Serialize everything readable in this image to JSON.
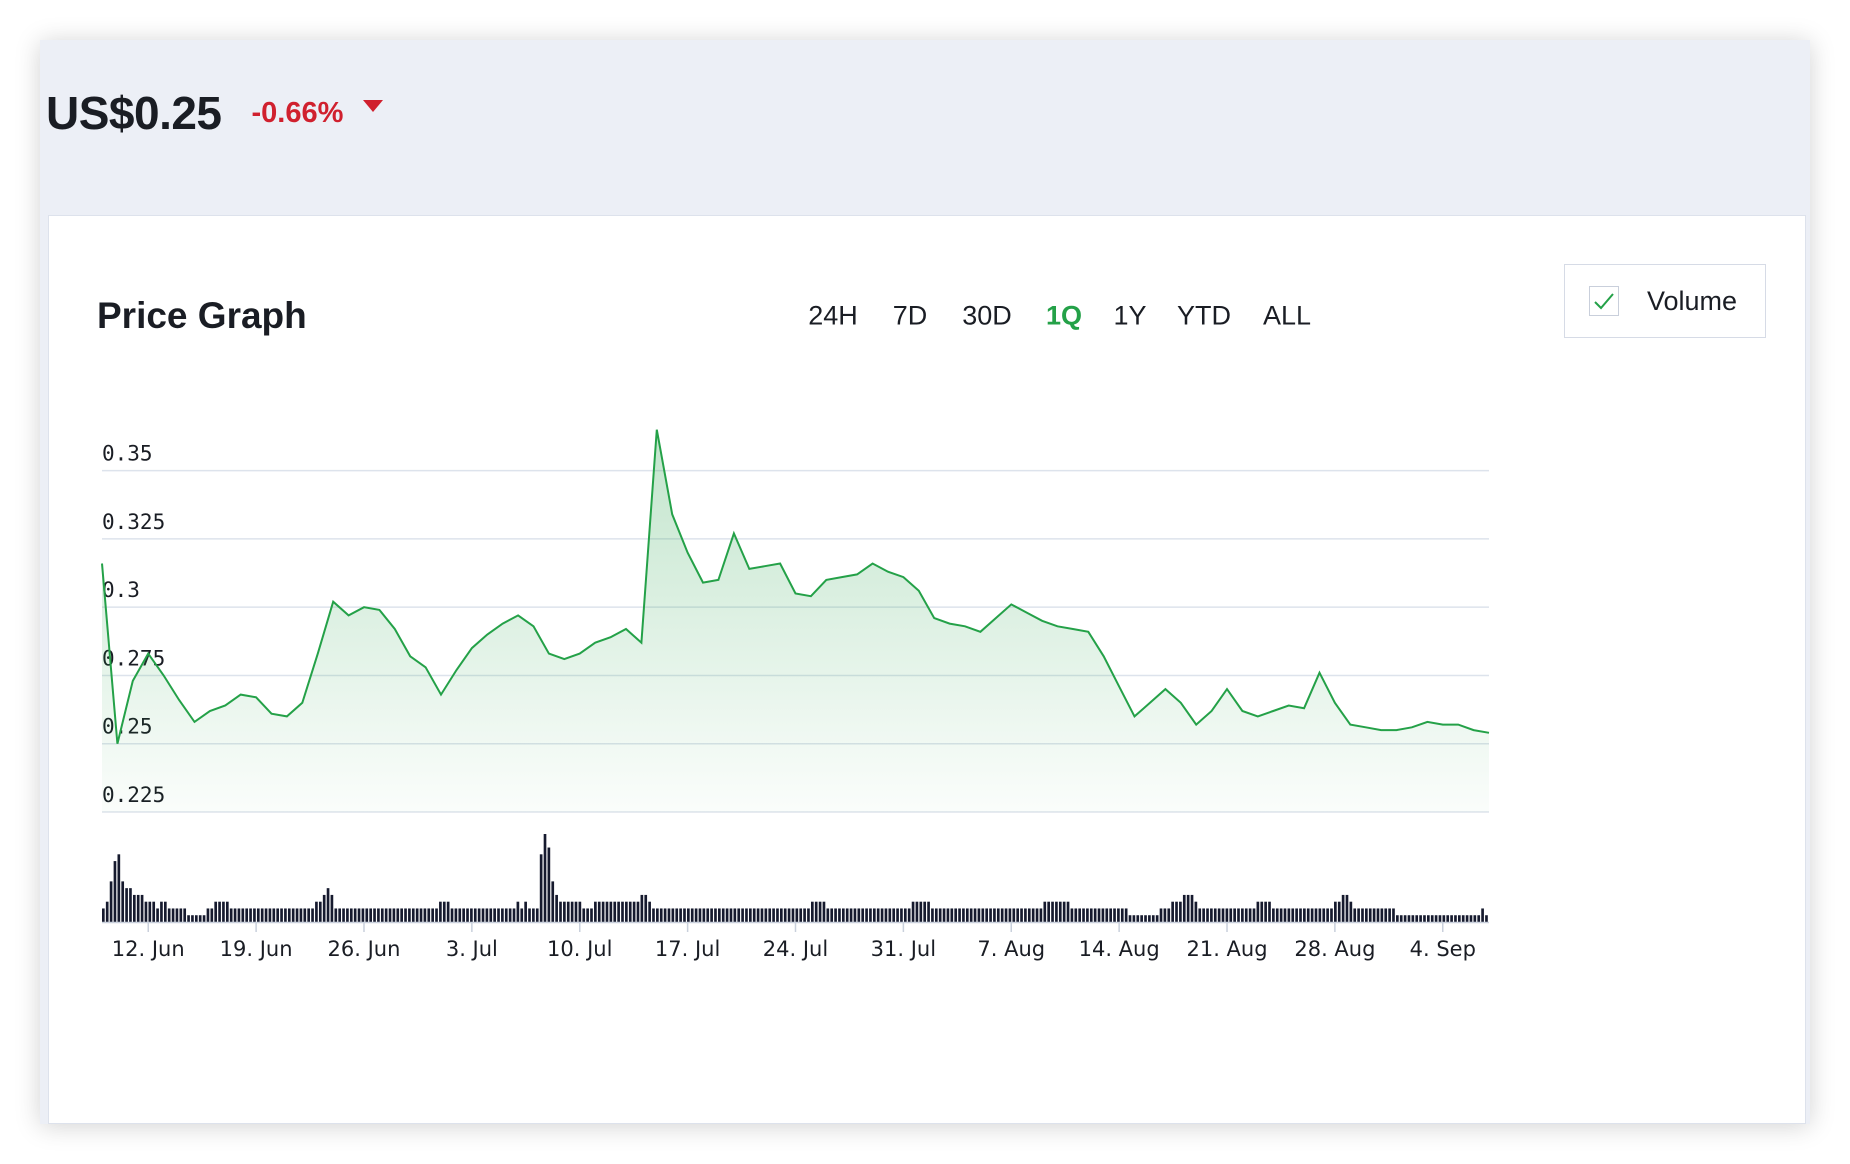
{
  "header": {
    "price": "US$0.25",
    "change": "-0.66%",
    "change_direction": "down",
    "change_color": "#d0202e"
  },
  "card": {
    "title": "Price Graph",
    "ranges": [
      {
        "label": "24H",
        "active": false
      },
      {
        "label": "7D",
        "active": false
      },
      {
        "label": "30D",
        "active": false
      },
      {
        "label": "1Q",
        "active": true
      },
      {
        "label": "1Y",
        "active": false
      },
      {
        "label": "YTD",
        "active": false
      },
      {
        "label": "ALL",
        "active": false
      }
    ],
    "volume_toggle": {
      "label": "Volume",
      "checked": true,
      "check_icon": "checkmark-icon"
    }
  },
  "colors": {
    "line": "#24a148",
    "area_fill": "#24a148",
    "volume_bar": "#161a2e",
    "gridline": "#dde3ec",
    "active_range": "#24a148"
  },
  "chart_data": {
    "type": "area",
    "title": "",
    "xlabel": "",
    "ylabel": "",
    "ylim": [
      0.225,
      0.37
    ],
    "yticks": [
      0.225,
      0.25,
      0.275,
      0.3,
      0.325,
      0.35
    ],
    "ytick_labels": [
      "0.225",
      "0.25",
      "0.275",
      "0.3",
      "0.325",
      "0.35"
    ],
    "grid": true,
    "x_range": [
      "2023-06-09",
      "2023-09-07"
    ],
    "xticks": [
      {
        "date": "2023-06-12",
        "label": "12. Jun"
      },
      {
        "date": "2023-06-19",
        "label": "19. Jun"
      },
      {
        "date": "2023-06-26",
        "label": "26. Jun"
      },
      {
        "date": "2023-07-03",
        "label": "3. Jul"
      },
      {
        "date": "2023-07-10",
        "label": "10. Jul"
      },
      {
        "date": "2023-07-17",
        "label": "17. Jul"
      },
      {
        "date": "2023-07-24",
        "label": "24. Jul"
      },
      {
        "date": "2023-07-31",
        "label": "31. Jul"
      },
      {
        "date": "2023-08-07",
        "label": "7. Aug"
      },
      {
        "date": "2023-08-14",
        "label": "14. Aug"
      },
      {
        "date": "2023-08-21",
        "label": "21. Aug"
      },
      {
        "date": "2023-08-28",
        "label": "28. Aug"
      },
      {
        "date": "2023-09-04",
        "label": "4. Sep"
      }
    ],
    "series": [
      {
        "values": [
          [
            "2023-06-09",
            0.316
          ],
          [
            "2023-06-10",
            0.25
          ],
          [
            "2023-06-11",
            0.273
          ],
          [
            "2023-06-12",
            0.283
          ],
          [
            "2023-06-13",
            0.275
          ],
          [
            "2023-06-14",
            0.266
          ],
          [
            "2023-06-15",
            0.258
          ],
          [
            "2023-06-16",
            0.262
          ],
          [
            "2023-06-17",
            0.264
          ],
          [
            "2023-06-18",
            0.268
          ],
          [
            "2023-06-19",
            0.267
          ],
          [
            "2023-06-20",
            0.261
          ],
          [
            "2023-06-21",
            0.26
          ],
          [
            "2023-06-22",
            0.265
          ],
          [
            "2023-06-23",
            0.283
          ],
          [
            "2023-06-24",
            0.302
          ],
          [
            "2023-06-25",
            0.297
          ],
          [
            "2023-06-26",
            0.3
          ],
          [
            "2023-06-27",
            0.299
          ],
          [
            "2023-06-28",
            0.292
          ],
          [
            "2023-06-29",
            0.282
          ],
          [
            "2023-06-30",
            0.278
          ],
          [
            "2023-07-01",
            0.268
          ],
          [
            "2023-07-02",
            0.277
          ],
          [
            "2023-07-03",
            0.285
          ],
          [
            "2023-07-04",
            0.29
          ],
          [
            "2023-07-05",
            0.294
          ],
          [
            "2023-07-06",
            0.297
          ],
          [
            "2023-07-07",
            0.293
          ],
          [
            "2023-07-08",
            0.283
          ],
          [
            "2023-07-09",
            0.281
          ],
          [
            "2023-07-10",
            0.283
          ],
          [
            "2023-07-11",
            0.287
          ],
          [
            "2023-07-12",
            0.289
          ],
          [
            "2023-07-13",
            0.292
          ],
          [
            "2023-07-14",
            0.287
          ],
          [
            "2023-07-15",
            0.365
          ],
          [
            "2023-07-16",
            0.334
          ],
          [
            "2023-07-17",
            0.32
          ],
          [
            "2023-07-18",
            0.309
          ],
          [
            "2023-07-19",
            0.31
          ],
          [
            "2023-07-20",
            0.327
          ],
          [
            "2023-07-21",
            0.314
          ],
          [
            "2023-07-22",
            0.315
          ],
          [
            "2023-07-23",
            0.316
          ],
          [
            "2023-07-24",
            0.305
          ],
          [
            "2023-07-25",
            0.304
          ],
          [
            "2023-07-26",
            0.31
          ],
          [
            "2023-07-27",
            0.311
          ],
          [
            "2023-07-28",
            0.312
          ],
          [
            "2023-07-29",
            0.316
          ],
          [
            "2023-07-30",
            0.313
          ],
          [
            "2023-07-31",
            0.311
          ],
          [
            "2023-08-01",
            0.306
          ],
          [
            "2023-08-02",
            0.296
          ],
          [
            "2023-08-03",
            0.294
          ],
          [
            "2023-08-04",
            0.293
          ],
          [
            "2023-08-05",
            0.291
          ],
          [
            "2023-08-06",
            0.296
          ],
          [
            "2023-08-07",
            0.301
          ],
          [
            "2023-08-08",
            0.298
          ],
          [
            "2023-08-09",
            0.295
          ],
          [
            "2023-08-10",
            0.293
          ],
          [
            "2023-08-11",
            0.292
          ],
          [
            "2023-08-12",
            0.291
          ],
          [
            "2023-08-13",
            0.282
          ],
          [
            "2023-08-14",
            0.271
          ],
          [
            "2023-08-15",
            0.26
          ],
          [
            "2023-08-16",
            0.265
          ],
          [
            "2023-08-17",
            0.27
          ],
          [
            "2023-08-18",
            0.265
          ],
          [
            "2023-08-19",
            0.257
          ],
          [
            "2023-08-20",
            0.262
          ],
          [
            "2023-08-21",
            0.27
          ],
          [
            "2023-08-22",
            0.262
          ],
          [
            "2023-08-23",
            0.26
          ],
          [
            "2023-08-24",
            0.262
          ],
          [
            "2023-08-25",
            0.264
          ],
          [
            "2023-08-26",
            0.263
          ],
          [
            "2023-08-27",
            0.276
          ],
          [
            "2023-08-28",
            0.265
          ],
          [
            "2023-08-29",
            0.257
          ],
          [
            "2023-08-30",
            0.256
          ],
          [
            "2023-08-31",
            0.255
          ],
          [
            "2023-09-01",
            0.255
          ],
          [
            "2023-09-02",
            0.256
          ],
          [
            "2023-09-03",
            0.258
          ],
          [
            "2023-09-04",
            0.257
          ],
          [
            "2023-09-05",
            0.257
          ],
          [
            "2023-09-06",
            0.255
          ],
          [
            "2023-09-07",
            0.254
          ]
        ]
      }
    ],
    "volume": [
      2,
      3,
      6,
      9,
      10,
      6,
      5,
      5,
      4,
      4,
      4,
      3,
      3,
      3,
      2,
      3,
      3,
      2,
      2,
      2,
      2,
      2,
      1,
      1,
      1,
      1,
      1,
      2,
      2,
      3,
      3,
      3,
      3,
      2,
      2,
      2,
      2,
      2,
      2,
      2,
      2,
      2,
      2,
      2,
      2,
      2,
      2,
      2,
      2,
      2,
      2,
      2,
      2,
      2,
      2,
      3,
      3,
      4,
      5,
      4,
      2,
      2,
      2,
      2,
      2,
      2,
      2,
      2,
      2,
      2,
      2,
      2,
      2,
      2,
      2,
      2,
      2,
      2,
      2,
      2,
      2,
      2,
      2,
      2,
      2,
      2,
      2,
      3,
      3,
      3,
      2,
      2,
      2,
      2,
      2,
      2,
      2,
      2,
      2,
      2,
      2,
      2,
      2,
      2,
      2,
      2,
      2,
      3,
      2,
      3,
      2,
      2,
      2,
      10,
      13,
      11,
      6,
      4,
      3,
      3,
      3,
      3,
      3,
      3,
      2,
      2,
      2,
      3,
      3,
      3,
      3,
      3,
      3,
      3,
      3,
      3,
      3,
      3,
      3,
      4,
      4,
      3,
      2,
      2,
      2,
      2,
      2,
      2,
      2,
      2,
      2,
      2,
      2,
      2,
      2,
      2,
      2,
      2,
      2,
      2,
      2,
      2,
      2,
      2,
      2,
      2,
      2,
      2,
      2,
      2,
      2,
      2,
      2,
      2,
      2,
      2,
      2,
      2,
      2,
      2,
      2,
      2,
      2,
      3,
      3,
      3,
      3,
      2,
      2,
      2,
      2,
      2,
      2,
      2,
      2,
      2,
      2,
      2,
      2,
      2,
      2,
      2,
      2,
      2,
      2,
      2,
      2,
      2,
      2,
      3,
      3,
      3,
      3,
      3,
      2,
      2,
      2,
      2,
      2,
      2,
      2,
      2,
      2,
      2,
      2,
      2,
      2,
      2,
      2,
      2,
      2,
      2,
      2,
      2,
      2,
      2,
      2,
      2,
      2,
      2,
      2,
      2,
      2,
      3,
      3,
      3,
      3,
      3,
      3,
      3,
      2,
      2,
      2,
      2,
      2,
      2,
      2,
      2,
      2,
      2,
      2,
      2,
      2,
      2,
      2,
      1,
      1,
      1,
      1,
      1,
      1,
      1,
      1,
      2,
      2,
      2,
      3,
      3,
      3,
      4,
      4,
      4,
      3,
      2,
      2,
      2,
      2,
      2,
      2,
      2,
      2,
      2,
      2,
      2,
      2,
      2,
      2,
      2,
      3,
      3,
      3,
      3,
      2,
      2,
      2,
      2,
      2,
      2,
      2,
      2,
      2,
      2,
      2,
      2,
      2,
      2,
      2,
      2,
      3,
      3,
      4,
      4,
      3,
      2,
      2,
      2,
      2,
      2,
      2,
      2,
      2,
      2,
      2,
      2,
      1,
      1,
      1,
      1,
      1,
      1,
      1,
      1,
      1,
      1,
      1,
      1,
      1,
      1,
      1,
      1,
      1,
      1,
      1,
      1,
      1,
      1,
      2,
      1
    ]
  }
}
